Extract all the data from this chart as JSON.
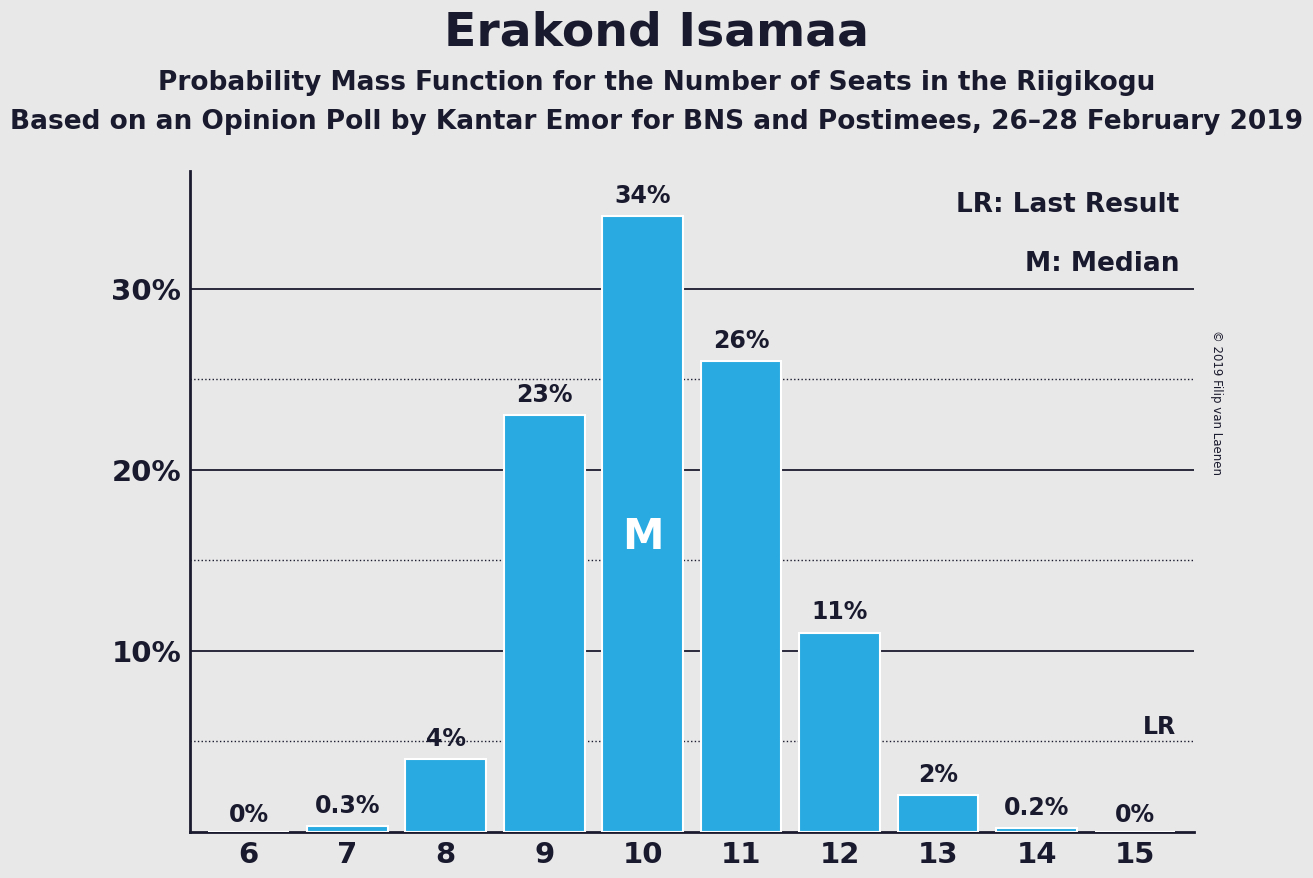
{
  "title": "Erakond Isamaa",
  "subtitle1": "Probability Mass Function for the Number of Seats in the Riigikogu",
  "subtitle2": "Based on an Opinion Poll by Kantar Emor for BNS and Postimees, 26–28 February 2019",
  "copyright": "© 2019 Filip van Laenen",
  "seats": [
    6,
    7,
    8,
    9,
    10,
    11,
    12,
    13,
    14,
    15
  ],
  "values": [
    0.0,
    0.3,
    4.0,
    23.0,
    34.0,
    26.0,
    11.0,
    2.0,
    0.2,
    0.0
  ],
  "bar_color": "#29ABE2",
  "background_color": "#E8E8E8",
  "bar_labels": [
    "0%",
    "0.3%",
    "4%",
    "23%",
    "34%",
    "26%",
    "11%",
    "2%",
    "0.2%",
    "0%"
  ],
  "median_seat": 10,
  "median_label": "M",
  "lr_value": 5.0,
  "lr_label": "LR",
  "ylim": [
    0,
    36.5
  ],
  "yticks": [
    10,
    20,
    30
  ],
  "ytick_labels": [
    "10%",
    "20%",
    "30%"
  ],
  "dotted_lines": [
    5,
    15,
    25
  ],
  "solid_lines": [
    10,
    20,
    30
  ],
  "title_fontsize": 34,
  "subtitle_fontsize": 19,
  "label_fontsize": 17,
  "tick_fontsize": 21,
  "legend_fontsize": 19,
  "median_fontsize": 30,
  "axis_color": "#1a1a2e",
  "text_color": "#1a1a2e",
  "bar_width": 0.82
}
